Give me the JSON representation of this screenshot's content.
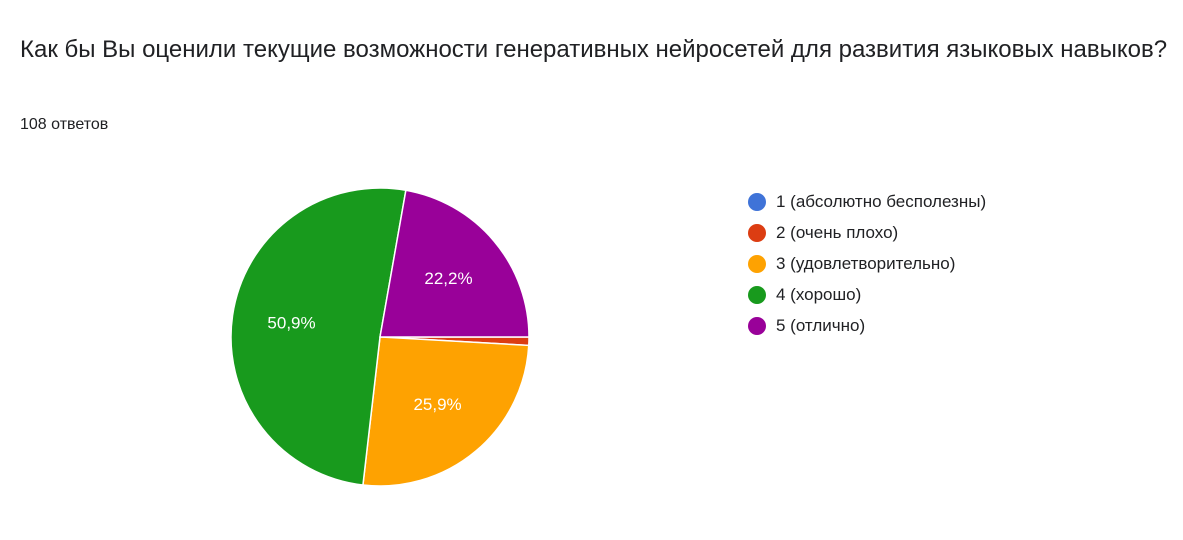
{
  "chart_data": {
    "type": "pie",
    "title": "Как бы Вы оценили текущие возможности генеративных нейросетей для развития языковых навыков?",
    "subtitle": "108 ответов",
    "legend_position": "right",
    "slices": [
      {
        "label": "1 (абсолютно бесполезны)",
        "value": 0.0,
        "display": "",
        "color": "#3f73d8"
      },
      {
        "label": "2 (очень плохо)",
        "value": 0.9,
        "display": "",
        "color": "#dc3d12"
      },
      {
        "label": "3 (удовлетворительно)",
        "value": 25.9,
        "display": "25,9%",
        "color": "#fea201"
      },
      {
        "label": "4 (хорошо)",
        "value": 50.9,
        "display": "50,9%",
        "color": "#189a1d"
      },
      {
        "label": "5 (отлично)",
        "value": 22.2,
        "display": "22,2%",
        "color": "#990199"
      }
    ]
  }
}
